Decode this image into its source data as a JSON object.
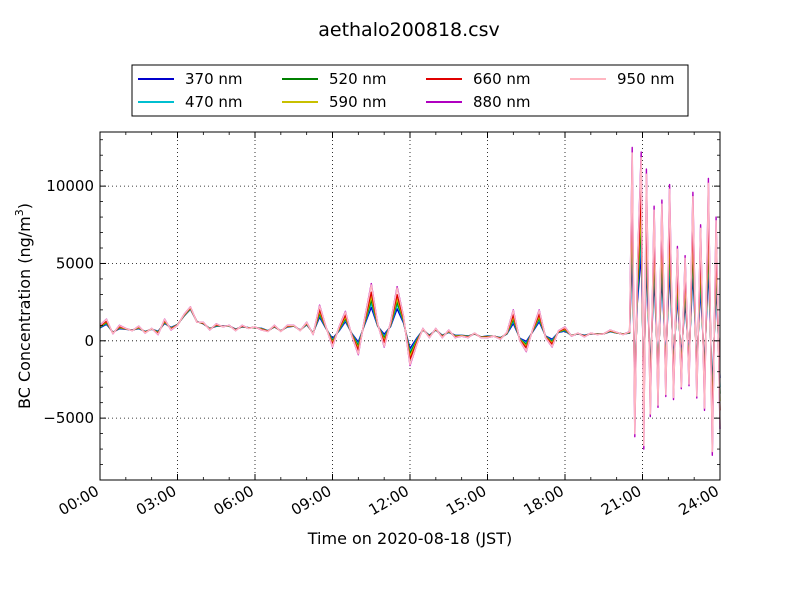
{
  "chart_data": {
    "type": "line",
    "title": "aethalo200818.csv",
    "xlabel": "Time on 2020-08-18 (JST)",
    "ylabel": "BC Concentration (ng/m",
    "ylabel_superscript": "3",
    "ylabel_close": ")",
    "xlim": [
      "00:00",
      "24:00"
    ],
    "x_range_hours": [
      0,
      24
    ],
    "ylim": [
      -9000,
      13500
    ],
    "x_ticks": [
      {
        "hour": 0,
        "label": "00:00"
      },
      {
        "hour": 3,
        "label": "03:00"
      },
      {
        "hour": 6,
        "label": "06:00"
      },
      {
        "hour": 9,
        "label": "09:00"
      },
      {
        "hour": 12,
        "label": "12:00"
      },
      {
        "hour": 15,
        "label": "15:00"
      },
      {
        "hour": 18,
        "label": "18:00"
      },
      {
        "hour": 21,
        "label": "21:00"
      },
      {
        "hour": 24,
        "label": "24:00"
      }
    ],
    "y_ticks": [
      {
        "value": -5000,
        "label": "−5000"
      },
      {
        "value": 0,
        "label": "0"
      },
      {
        "value": 5000,
        "label": "5000"
      },
      {
        "value": 10000,
        "label": "10000"
      }
    ],
    "grid": true,
    "legend_position": "top-center",
    "x_hours": [
      0,
      0.25,
      0.5,
      0.75,
      1.0,
      1.25,
      1.5,
      1.75,
      2.0,
      2.25,
      2.5,
      2.75,
      3.0,
      3.25,
      3.5,
      3.75,
      4.0,
      4.25,
      4.5,
      4.75,
      5.0,
      5.25,
      5.5,
      5.75,
      6.0,
      6.25,
      6.5,
      6.75,
      7.0,
      7.25,
      7.5,
      7.75,
      8.0,
      8.25,
      8.5,
      8.75,
      9.0,
      9.25,
      9.5,
      9.75,
      10.0,
      10.25,
      10.5,
      10.75,
      11.0,
      11.25,
      11.5,
      11.75,
      12.0,
      12.25,
      12.5,
      12.75,
      13.0,
      13.25,
      13.5,
      13.75,
      14.0,
      14.25,
      14.5,
      14.75,
      15.0,
      15.25,
      15.5,
      15.75,
      16.0,
      16.25,
      16.5,
      16.75,
      17.0,
      17.25,
      17.5,
      17.75,
      18.0,
      18.25,
      18.5,
      18.75,
      19.0,
      19.25,
      19.5,
      19.75,
      20.0,
      20.25,
      20.5,
      20.6,
      20.7,
      20.8,
      20.95,
      21.05,
      21.15,
      21.3,
      21.45,
      21.6,
      21.75,
      21.9,
      22.05,
      22.2,
      22.35,
      22.5,
      22.65,
      22.8,
      22.95,
      23.1,
      23.25,
      23.4,
      23.55,
      23.7,
      23.85,
      24.0
    ],
    "series": [
      {
        "name": "370 nm",
        "color": "#0000cc",
        "scale": 0.45
      },
      {
        "name": "470 nm",
        "color": "#00bfd0",
        "scale": 0.55
      },
      {
        "name": "520 nm",
        "color": "#008000",
        "scale": 0.62
      },
      {
        "name": "590 nm",
        "color": "#c8c000",
        "scale": 0.7
      },
      {
        "name": "660 nm",
        "color": "#e00000",
        "scale": 0.8
      },
      {
        "name": "880 nm",
        "color": "#b000c0",
        "scale": 1.0
      },
      {
        "name": "950 nm",
        "color": "#ffb6c1",
        "scale": 0.97
      }
    ],
    "base_370": [
      700,
      800,
      650,
      600,
      700,
      750,
      650,
      700,
      700,
      800,
      900,
      1000,
      1100,
      1500,
      1900,
      1300,
      1000,
      900,
      800,
      1000,
      900,
      850,
      800,
      900,
      800,
      900,
      700,
      800,
      700,
      800,
      900,
      750,
      900,
      600,
      900,
      700,
      600,
      400,
      700,
      600,
      600,
      700,
      900,
      800,
      1100,
      700,
      900,
      800,
      400,
      500,
      600,
      500,
      600,
      500,
      400,
      500,
      400,
      400,
      400,
      300,
      400,
      300,
      300,
      350,
      400,
      300,
      500,
      450,
      600,
      400,
      500,
      450,
      400,
      400,
      400,
      450,
      400,
      500,
      450,
      500,
      450,
      500,
      400,
      500,
      300,
      600,
      200,
      500,
      100,
      600,
      200,
      500,
      100,
      600,
      100,
      700,
      100,
      700,
      0,
      600,
      100,
      500,
      0,
      500,
      0,
      400,
      0,
      300
    ],
    "dev_880": [
      300,
      600,
      -200,
      400,
      100,
      -100,
      300,
      -200,
      100,
      -400,
      500,
      -300,
      -100,
      200,
      300,
      -100,
      200,
      -200,
      300,
      -100,
      100,
      -200,
      200,
      -100,
      100,
      -200,
      -100,
      200,
      -100,
      200,
      100,
      -100,
      300,
      -200,
      1400,
      200,
      -1000,
      500,
      1200,
      -300,
      -1500,
      800,
      2800,
      300,
      -1500,
      500,
      2600,
      800,
      -2000,
      -800,
      200,
      -300,
      200,
      -300,
      300,
      -300,
      -100,
      -200,
      100,
      -100,
      -200,
      0,
      -200,
      200,
      1600,
      -300,
      -1200,
      300,
      1400,
      -200,
      -900,
      200,
      500,
      -100,
      100,
      -200,
      100,
      -100,
      0,
      200,
      100,
      -100,
      200,
      12000,
      -6500,
      4000,
      12000,
      -7500,
      11000,
      -5500,
      8500,
      -4800,
      9000,
      -4200,
      10000,
      -4500,
      6000,
      -3800,
      5500,
      -3500,
      9500,
      -4200,
      7500,
      -5000,
      10500,
      -7800,
      8000,
      -6000
    ]
  }
}
